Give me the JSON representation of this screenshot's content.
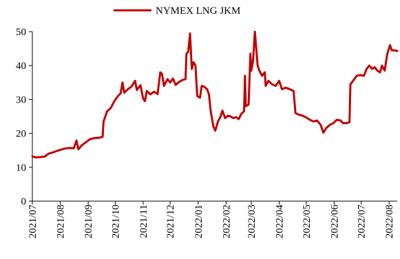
{
  "chart_data": {
    "type": "line",
    "title": "",
    "xlabel": "",
    "ylabel": "",
    "ylim": [
      0,
      50
    ],
    "yticks": [
      0,
      10,
      20,
      30,
      40,
      50
    ],
    "xlim": [
      "2021-07-01",
      "2022-08-10"
    ],
    "xtick_labels": [
      "2021/07",
      "2021/08",
      "2021/09",
      "2021/10",
      "2021/11",
      "2021/12",
      "2022/01",
      "2022/02",
      "2022/03",
      "2022/04",
      "2022/05",
      "2022/06",
      "2022/07",
      "2022/08"
    ],
    "xtick_dates": [
      "2021-07-01",
      "2021-08-01",
      "2021-09-01",
      "2021-10-01",
      "2021-11-01",
      "2021-12-01",
      "2022-01-01",
      "2022-02-01",
      "2022-03-01",
      "2022-04-01",
      "2022-05-01",
      "2022-06-01",
      "2022-07-01",
      "2022-08-01"
    ],
    "legend_position": "top-center",
    "grid": false,
    "series": [
      {
        "name": "NYMEX LNG JKM",
        "color": "#c00000",
        "points": [
          [
            "2021-07-01",
            13.2
          ],
          [
            "2021-07-05",
            12.9
          ],
          [
            "2021-07-10",
            13.0
          ],
          [
            "2021-07-15",
            13.2
          ],
          [
            "2021-07-19",
            14.0
          ],
          [
            "2021-07-23",
            14.3
          ],
          [
            "2021-07-28",
            14.8
          ],
          [
            "2021-08-02",
            15.2
          ],
          [
            "2021-08-06",
            15.5
          ],
          [
            "2021-08-11",
            15.7
          ],
          [
            "2021-08-16",
            15.6
          ],
          [
            "2021-08-19",
            17.9
          ],
          [
            "2021-08-21",
            15.3
          ],
          [
            "2021-08-25",
            16.5
          ],
          [
            "2021-08-30",
            17.5
          ],
          [
            "2021-09-03",
            18.3
          ],
          [
            "2021-09-08",
            18.6
          ],
          [
            "2021-09-13",
            18.7
          ],
          [
            "2021-09-17",
            19.0
          ],
          [
            "2021-09-18",
            23.5
          ],
          [
            "2021-09-22",
            26.5
          ],
          [
            "2021-09-26",
            27.5
          ],
          [
            "2021-09-30",
            29.5
          ],
          [
            "2021-10-04",
            31.0
          ],
          [
            "2021-10-07",
            31.8
          ],
          [
            "2021-10-09",
            35.0
          ],
          [
            "2021-10-11",
            32.0
          ],
          [
            "2021-10-15",
            33.0
          ],
          [
            "2021-10-19",
            33.8
          ],
          [
            "2021-10-23",
            35.5
          ],
          [
            "2021-10-25",
            32.8
          ],
          [
            "2021-10-29",
            34.2
          ],
          [
            "2021-11-01",
            30.2
          ],
          [
            "2021-11-03",
            29.5
          ],
          [
            "2021-11-05",
            32.5
          ],
          [
            "2021-11-09",
            31.5
          ],
          [
            "2021-11-13",
            32.3
          ],
          [
            "2021-11-17",
            31.6
          ],
          [
            "2021-11-20",
            38.0
          ],
          [
            "2021-11-22",
            37.5
          ],
          [
            "2021-11-24",
            34.0
          ],
          [
            "2021-11-28",
            36.0
          ],
          [
            "2021-12-01",
            35.0
          ],
          [
            "2021-12-04",
            36.2
          ],
          [
            "2021-12-07",
            34.3
          ],
          [
            "2021-12-11",
            35.2
          ],
          [
            "2021-12-15",
            35.8
          ],
          [
            "2021-12-18",
            36.0
          ],
          [
            "2021-12-19",
            43.5
          ],
          [
            "2021-12-21",
            44.0
          ],
          [
            "2021-12-23",
            49.5
          ],
          [
            "2021-12-25",
            39.0
          ],
          [
            "2021-12-27",
            41.0
          ],
          [
            "2021-12-29",
            40.0
          ],
          [
            "2021-12-31",
            31.0
          ],
          [
            "2022-01-03",
            30.5
          ],
          [
            "2022-01-05",
            34.0
          ],
          [
            "2022-01-08",
            33.7
          ],
          [
            "2022-01-11",
            33.0
          ],
          [
            "2022-01-13",
            31.5
          ],
          [
            "2022-01-15",
            26.5
          ],
          [
            "2022-01-18",
            22.0
          ],
          [
            "2022-01-20",
            20.8
          ],
          [
            "2022-01-23",
            23.5
          ],
          [
            "2022-01-26",
            25.0
          ],
          [
            "2022-01-28",
            26.7
          ],
          [
            "2022-01-31",
            24.5
          ],
          [
            "2022-02-03",
            25.2
          ],
          [
            "2022-02-06",
            25.0
          ],
          [
            "2022-02-09",
            24.5
          ],
          [
            "2022-02-12",
            24.8
          ],
          [
            "2022-02-15",
            24.2
          ],
          [
            "2022-02-18",
            25.8
          ],
          [
            "2022-02-21",
            26.5
          ],
          [
            "2022-02-22",
            37.0
          ],
          [
            "2022-02-23",
            28.0
          ],
          [
            "2022-02-26",
            28.5
          ],
          [
            "2022-02-28",
            43.5
          ],
          [
            "2022-03-01",
            38.5
          ],
          [
            "2022-03-03",
            41.5
          ],
          [
            "2022-03-05",
            50.0
          ],
          [
            "2022-03-08",
            40.0
          ],
          [
            "2022-03-10",
            38.5
          ],
          [
            "2022-03-13",
            37.0
          ],
          [
            "2022-03-16",
            38.0
          ],
          [
            "2022-03-17",
            34.0
          ],
          [
            "2022-03-20",
            35.5
          ],
          [
            "2022-03-24",
            34.5
          ],
          [
            "2022-03-28",
            34.0
          ],
          [
            "2022-04-01",
            35.5
          ],
          [
            "2022-04-04",
            33.0
          ],
          [
            "2022-04-08",
            33.5
          ],
          [
            "2022-04-13",
            33.0
          ],
          [
            "2022-04-17",
            32.5
          ],
          [
            "2022-04-19",
            26.0
          ],
          [
            "2022-04-23",
            25.5
          ],
          [
            "2022-04-27",
            25.2
          ],
          [
            "2022-05-01",
            24.7
          ],
          [
            "2022-05-05",
            24.0
          ],
          [
            "2022-05-09",
            23.5
          ],
          [
            "2022-05-13",
            23.8
          ],
          [
            "2022-05-17",
            22.5
          ],
          [
            "2022-05-20",
            20.2
          ],
          [
            "2022-05-23",
            21.5
          ],
          [
            "2022-05-27",
            22.5
          ],
          [
            "2022-05-31",
            23.0
          ],
          [
            "2022-06-04",
            24.0
          ],
          [
            "2022-06-08",
            23.8
          ],
          [
            "2022-06-11",
            23.0
          ],
          [
            "2022-06-15",
            23.0
          ],
          [
            "2022-06-18",
            23.3
          ],
          [
            "2022-06-19",
            34.5
          ],
          [
            "2022-06-22",
            35.5
          ],
          [
            "2022-06-26",
            37.0
          ],
          [
            "2022-06-30",
            37.2
          ],
          [
            "2022-07-04",
            37.0
          ],
          [
            "2022-07-07",
            39.0
          ],
          [
            "2022-07-10",
            40.0
          ],
          [
            "2022-07-13",
            39.0
          ],
          [
            "2022-07-16",
            39.5
          ],
          [
            "2022-07-19",
            38.5
          ],
          [
            "2022-07-22",
            38.0
          ],
          [
            "2022-07-24",
            40.0
          ],
          [
            "2022-07-27",
            38.5
          ],
          [
            "2022-07-30",
            43.5
          ],
          [
            "2022-08-02",
            46.0
          ],
          [
            "2022-08-04",
            44.5
          ],
          [
            "2022-08-07",
            44.5
          ],
          [
            "2022-08-10",
            44.3
          ]
        ]
      }
    ]
  }
}
